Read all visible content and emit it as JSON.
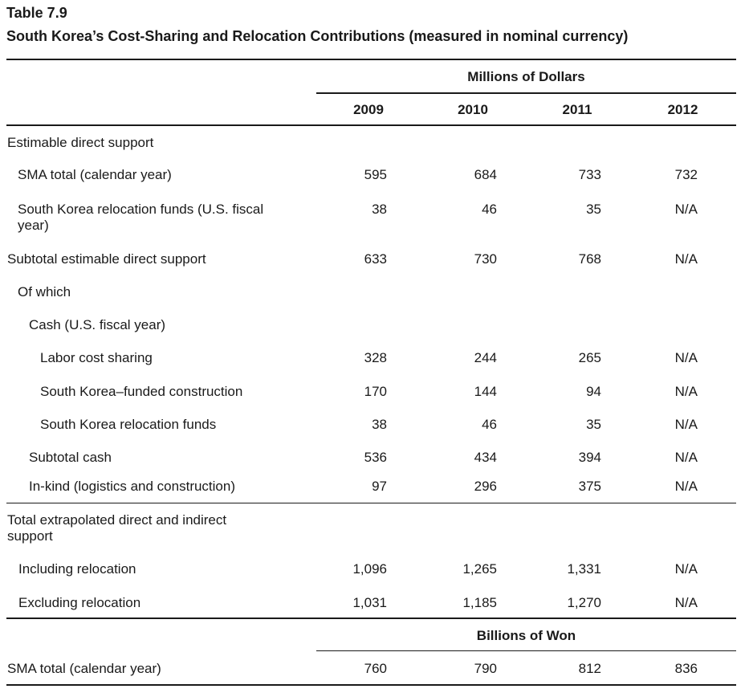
{
  "table_number": "Table 7.9",
  "table_title": "South Korea’s Cost-Sharing and Relocation Contributions (measured in nominal currency)",
  "units_dollars": "Millions of Dollars",
  "units_won": "Billions of Won",
  "years": [
    "2009",
    "2010",
    "2011",
    "2012"
  ],
  "rows": [
    {
      "label": "Estimable direct support",
      "values": []
    },
    {
      "label": "SMA total (calendar year)",
      "values": [
        "595",
        "684",
        "733",
        "732"
      ]
    },
    {
      "label": "South Korea relocation funds (U.S. fiscal",
      "label2": "year)",
      "values": [
        "38",
        "46",
        "35",
        "N/A"
      ]
    },
    {
      "label": "Subtotal estimable direct support",
      "values": [
        "633",
        "730",
        "768",
        "N/A"
      ]
    },
    {
      "label": "Of which",
      "values": []
    },
    {
      "label": "Cash (U.S. fiscal year)",
      "values": []
    },
    {
      "label": "Labor cost sharing",
      "values": [
        "328",
        "244",
        "265",
        "N/A"
      ]
    },
    {
      "label": "South Korea–funded construction",
      "values": [
        "170",
        "144",
        "94",
        "N/A"
      ]
    },
    {
      "label": "South Korea relocation funds",
      "values": [
        "38",
        "46",
        "35",
        "N/A"
      ]
    },
    {
      "label": "Subtotal cash",
      "values": [
        "536",
        "434",
        "394",
        "N/A"
      ]
    },
    {
      "label": "In-kind (logistics and construction)",
      "values": [
        "97",
        "296",
        "375",
        "N/A"
      ]
    },
    {
      "label": "Total extrapolated direct and indirect",
      "label2": "support",
      "values": []
    },
    {
      "label": "Including relocation",
      "values": [
        "1,096",
        "1,265",
        "1,331",
        "N/A"
      ]
    },
    {
      "label": "Excluding relocation",
      "values": [
        "1,031",
        "1,185",
        "1,270",
        "N/A"
      ]
    },
    {
      "label": "SMA total (calendar year)",
      "values": [
        "760",
        "790",
        "812",
        "836"
      ]
    }
  ]
}
